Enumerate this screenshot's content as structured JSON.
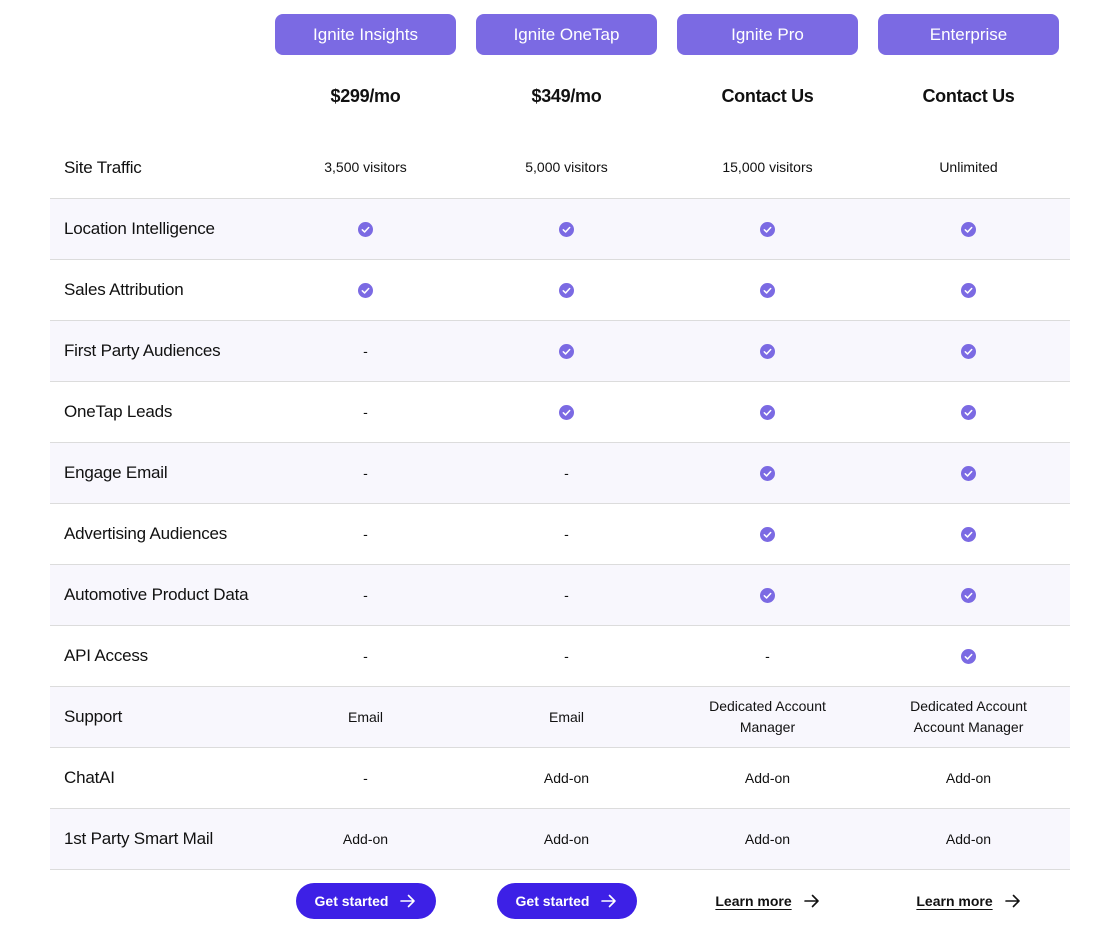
{
  "plans": [
    {
      "name": "Ignite Insights",
      "price": "$299/mo"
    },
    {
      "name": "Ignite OneTap",
      "price": "$349/mo"
    },
    {
      "name": "Ignite Pro",
      "price": "Contact Us"
    },
    {
      "name": "Enterprise",
      "price": "Contact Us"
    }
  ],
  "features": [
    {
      "name": "Site Traffic",
      "values": [
        "3,500 visitors",
        "5,000 visitors",
        "15,000 visitors",
        "Unlimited"
      ]
    },
    {
      "name": "Location Intelligence",
      "values": [
        "check",
        "check",
        "check",
        "check"
      ]
    },
    {
      "name": "Sales Attribution",
      "values": [
        "check",
        "check",
        "check",
        "check"
      ]
    },
    {
      "name": "First Party Audiences",
      "values": [
        "-",
        "check",
        "check",
        "check"
      ]
    },
    {
      "name": "OneTap Leads",
      "values": [
        "-",
        "check",
        "check",
        "check"
      ]
    },
    {
      "name": "Engage Email",
      "values": [
        "-",
        "-",
        "check",
        "check"
      ]
    },
    {
      "name": "Advertising Audiences",
      "values": [
        "-",
        "-",
        "check",
        "check"
      ]
    },
    {
      "name": "Automotive Product Data",
      "values": [
        "-",
        "-",
        "check",
        "check"
      ]
    },
    {
      "name": "API Access",
      "values": [
        "-",
        "-",
        "-",
        "check"
      ]
    },
    {
      "name": "Support",
      "values": [
        "Email",
        "Email",
        "Dedicated Account Manager",
        "Dedicated Account Account Manager"
      ]
    },
    {
      "name": "ChatAI",
      "values": [
        "-",
        "Add-on",
        "Add-on",
        "Add-on"
      ]
    },
    {
      "name": "1st Party Smart Mail",
      "values": [
        "Add-on",
        "Add-on",
        "Add-on",
        "Add-on"
      ]
    }
  ],
  "ctas": [
    {
      "type": "button",
      "label": "Get started"
    },
    {
      "type": "button",
      "label": "Get started"
    },
    {
      "type": "link",
      "label": "Learn more"
    },
    {
      "type": "link",
      "label": "Learn more"
    }
  ],
  "icons": {
    "included": "check-circle-icon",
    "cta_arrow": "arrow-right-icon"
  },
  "colors": {
    "accent": "#7b6ae3",
    "button": "#3d20e6",
    "row_alt": "#f8f7fd",
    "divider": "#dcdcdc"
  }
}
